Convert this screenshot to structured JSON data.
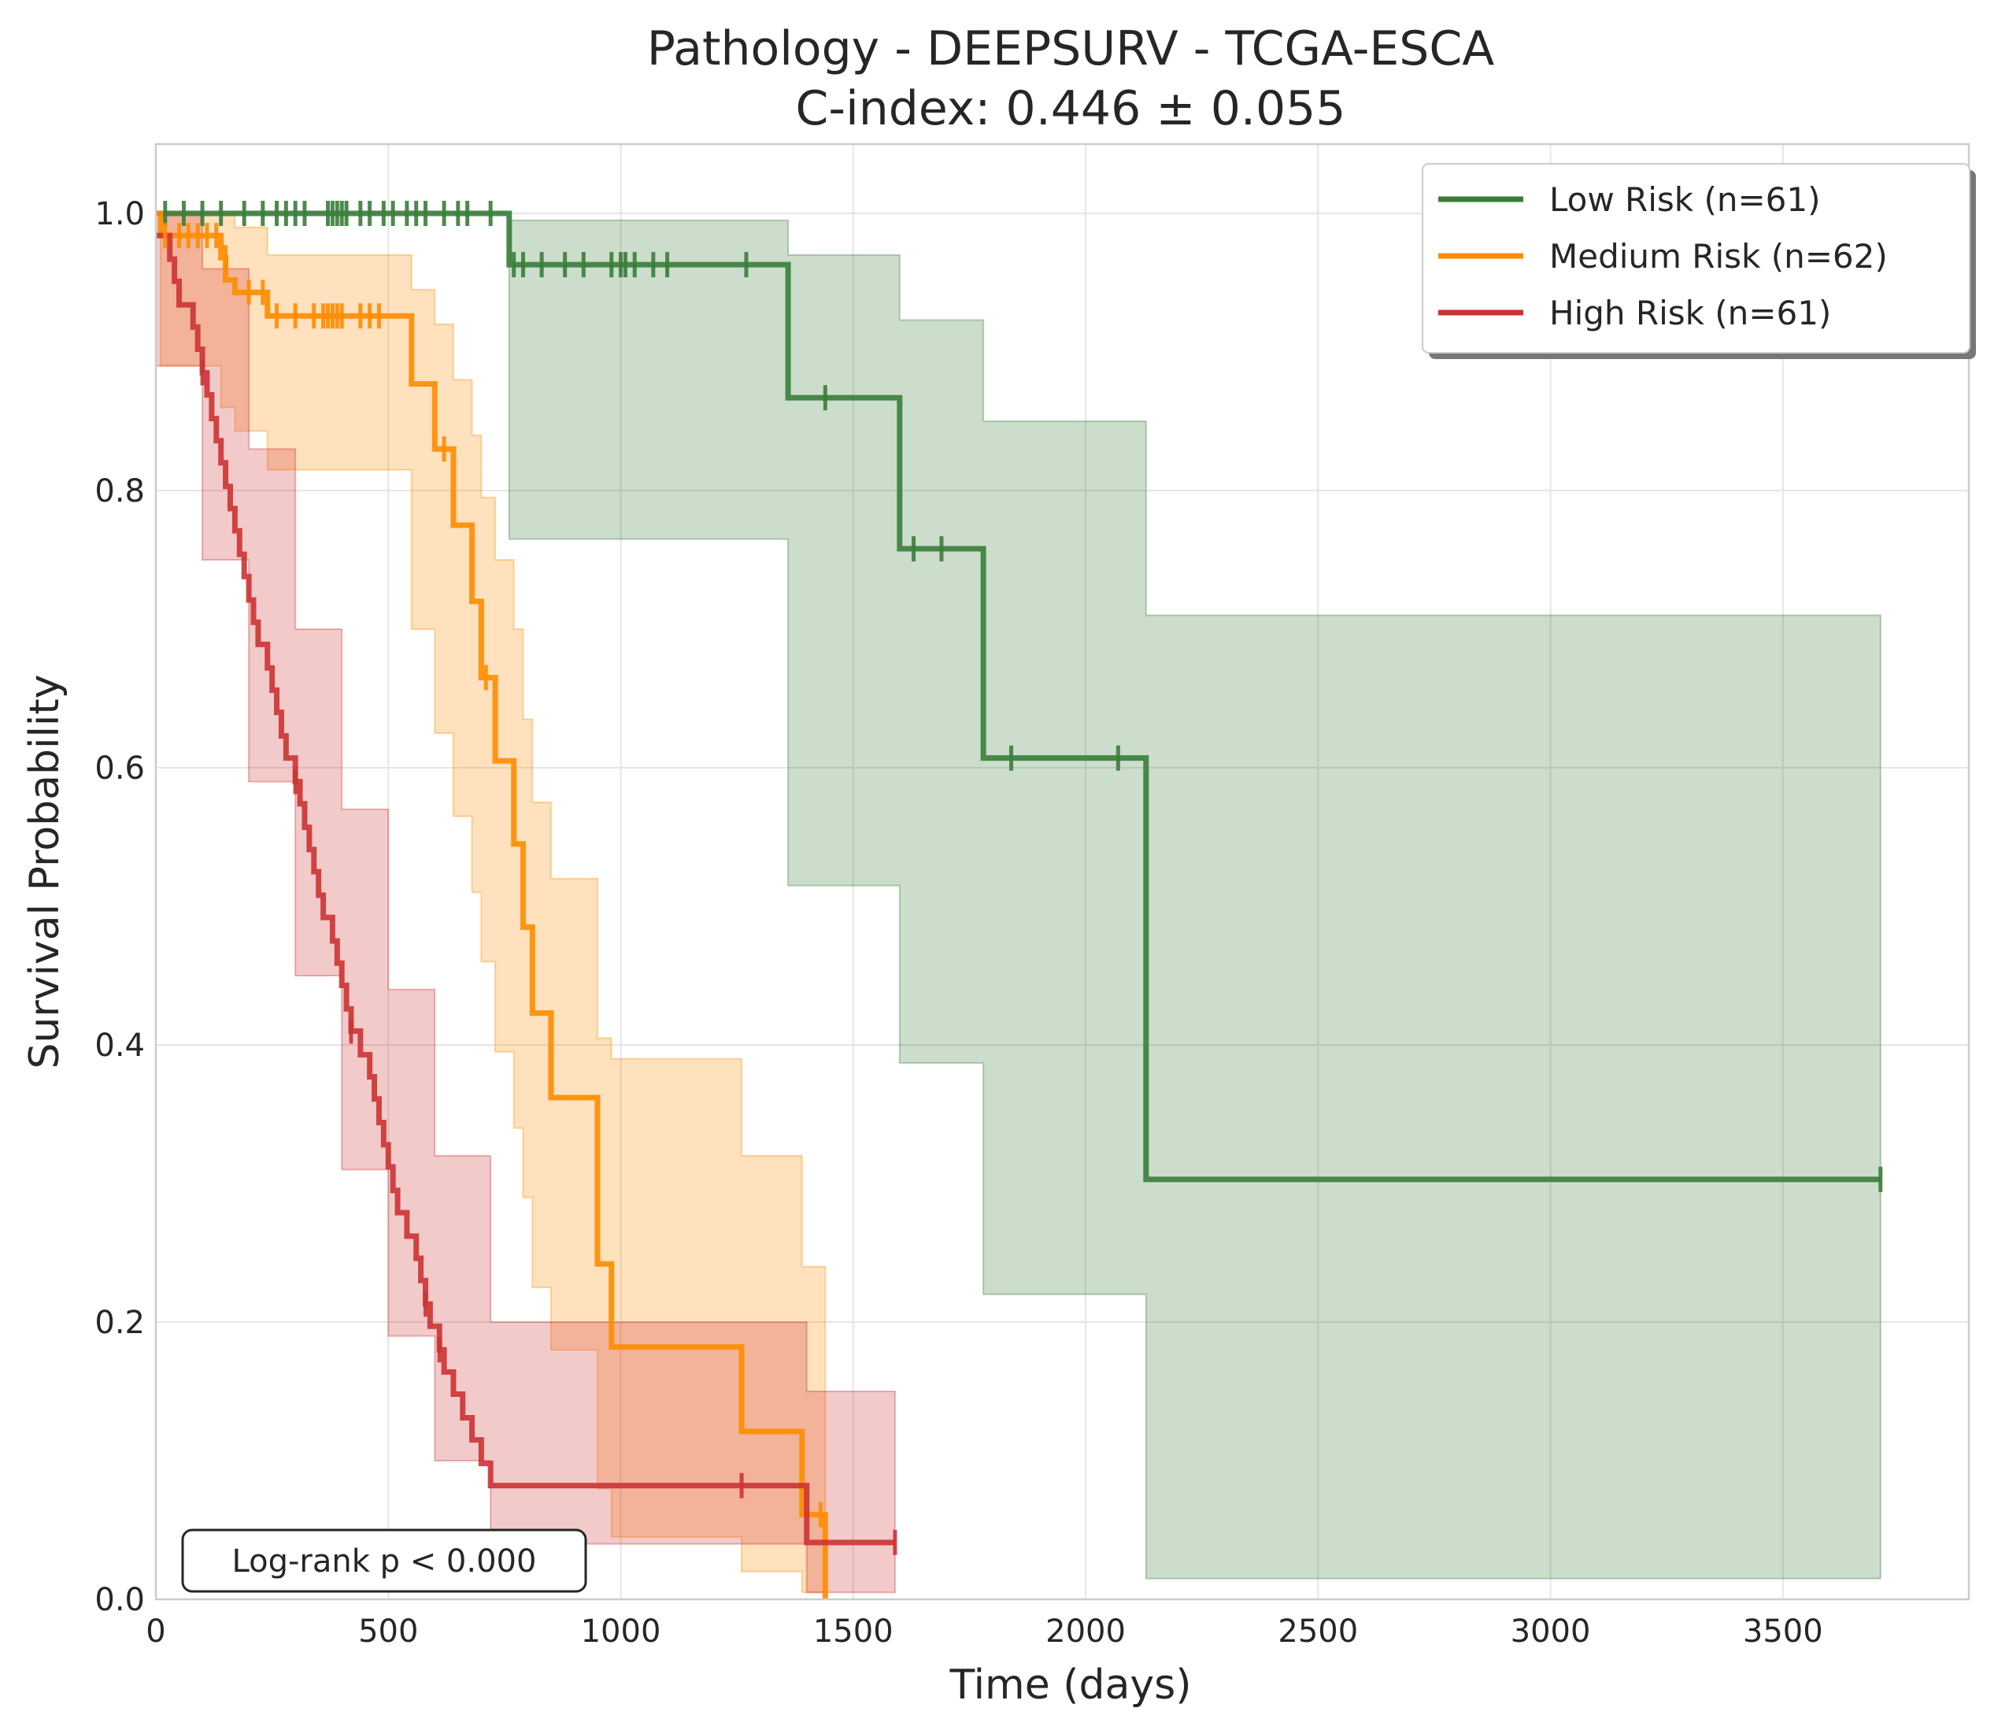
{
  "chart_data": {
    "type": "line",
    "title": "Pathology - DEEPSURV - TCGA-ESCA",
    "subtitle": "C-index: 0.446 ± 0.055",
    "xlabel": "Time (days)",
    "ylabel": "Survival Probability",
    "xlim": [
      0,
      3900
    ],
    "ylim": [
      0,
      1.05
    ],
    "xticks": [
      0,
      500,
      1000,
      1500,
      2000,
      2500,
      3000,
      3500
    ],
    "yticks": [
      0.0,
      0.2,
      0.4,
      0.6,
      0.8,
      1.0
    ],
    "grid": true,
    "legend_position": "top-right",
    "annotation": "Log-rank p < 0.000",
    "series": [
      {
        "name": "Low Risk (n=61)",
        "color": "#3a7d3a",
        "steps": [
          [
            0,
            1.0
          ],
          [
            760,
            0.963
          ],
          [
            1360,
            0.867
          ],
          [
            1600,
            0.758
          ],
          [
            1780,
            0.607
          ],
          [
            2130,
            0.303
          ],
          [
            3710,
            0.303
          ]
        ],
        "ci": [
          [
            0,
            1.0,
            1.0
          ],
          [
            760,
            0.765,
            0.995
          ],
          [
            1360,
            0.515,
            0.97
          ],
          [
            1600,
            0.387,
            0.923
          ],
          [
            1780,
            0.22,
            0.85
          ],
          [
            2130,
            0.015,
            0.71
          ],
          [
            3710,
            0.015,
            0.71
          ]
        ],
        "censors": [
          [
            20,
            1.0
          ],
          [
            60,
            1.0
          ],
          [
            100,
            1.0
          ],
          [
            140,
            1.0
          ],
          [
            190,
            1.0
          ],
          [
            230,
            1.0
          ],
          [
            260,
            1.0
          ],
          [
            280,
            1.0
          ],
          [
            300,
            1.0
          ],
          [
            320,
            1.0
          ],
          [
            370,
            1.0
          ],
          [
            380,
            1.0
          ],
          [
            390,
            1.0
          ],
          [
            400,
            1.0
          ],
          [
            410,
            1.0
          ],
          [
            440,
            1.0
          ],
          [
            460,
            1.0
          ],
          [
            490,
            1.0
          ],
          [
            510,
            1.0
          ],
          [
            540,
            1.0
          ],
          [
            560,
            1.0
          ],
          [
            580,
            1.0
          ],
          [
            620,
            1.0
          ],
          [
            650,
            1.0
          ],
          [
            670,
            1.0
          ],
          [
            720,
            1.0
          ],
          [
            770,
            0.963
          ],
          [
            790,
            0.963
          ],
          [
            830,
            0.963
          ],
          [
            880,
            0.963
          ],
          [
            920,
            0.963
          ],
          [
            980,
            0.963
          ],
          [
            1000,
            0.963
          ],
          [
            1010,
            0.963
          ],
          [
            1030,
            0.963
          ],
          [
            1070,
            0.963
          ],
          [
            1100,
            0.963
          ],
          [
            1270,
            0.963
          ],
          [
            1440,
            0.867
          ],
          [
            1630,
            0.758
          ],
          [
            1690,
            0.758
          ],
          [
            1840,
            0.607
          ],
          [
            2070,
            0.607
          ],
          [
            3710,
            0.303
          ]
        ]
      },
      {
        "name": "Medium Risk (n=62)",
        "color": "#ff8c00",
        "steps": [
          [
            0,
            1.0
          ],
          [
            10,
            0.984
          ],
          [
            140,
            0.968
          ],
          [
            150,
            0.952
          ],
          [
            170,
            0.943
          ],
          [
            240,
            0.926
          ],
          [
            550,
            0.877
          ],
          [
            600,
            0.83
          ],
          [
            640,
            0.775
          ],
          [
            680,
            0.72
          ],
          [
            700,
            0.665
          ],
          [
            730,
            0.605
          ],
          [
            770,
            0.545
          ],
          [
            790,
            0.485
          ],
          [
            810,
            0.423
          ],
          [
            850,
            0.362
          ],
          [
            950,
            0.242
          ],
          [
            980,
            0.182
          ],
          [
            1260,
            0.121
          ],
          [
            1390,
            0.061
          ],
          [
            1440,
            0.0
          ]
        ],
        "ci": [
          [
            0,
            1.0,
            1.0
          ],
          [
            10,
            0.89,
            1.0
          ],
          [
            140,
            0.86,
            1.0
          ],
          [
            170,
            0.843,
            0.99
          ],
          [
            240,
            0.815,
            0.97
          ],
          [
            550,
            0.7,
            0.945
          ],
          [
            600,
            0.625,
            0.92
          ],
          [
            640,
            0.565,
            0.88
          ],
          [
            680,
            0.51,
            0.84
          ],
          [
            700,
            0.46,
            0.795
          ],
          [
            730,
            0.395,
            0.75
          ],
          [
            770,
            0.34,
            0.7
          ],
          [
            790,
            0.29,
            0.635
          ],
          [
            810,
            0.225,
            0.575
          ],
          [
            850,
            0.18,
            0.52
          ],
          [
            950,
            0.08,
            0.405
          ],
          [
            980,
            0.045,
            0.39
          ],
          [
            1260,
            0.02,
            0.32
          ],
          [
            1390,
            0.005,
            0.24
          ],
          [
            1440,
            0.0,
            0.24
          ]
        ],
        "censors": [
          [
            20,
            0.984
          ],
          [
            50,
            0.984
          ],
          [
            70,
            0.984
          ],
          [
            90,
            0.984
          ],
          [
            110,
            0.984
          ],
          [
            130,
            0.984
          ],
          [
            150,
            0.968
          ],
          [
            200,
            0.943
          ],
          [
            230,
            0.943
          ],
          [
            260,
            0.926
          ],
          [
            300,
            0.926
          ],
          [
            340,
            0.926
          ],
          [
            360,
            0.926
          ],
          [
            370,
            0.926
          ],
          [
            380,
            0.926
          ],
          [
            390,
            0.926
          ],
          [
            400,
            0.926
          ],
          [
            440,
            0.926
          ],
          [
            460,
            0.926
          ],
          [
            480,
            0.926
          ],
          [
            620,
            0.83
          ],
          [
            710,
            0.665
          ],
          [
            1430,
            0.061
          ]
        ]
      },
      {
        "name": "High Risk (n=61)",
        "color": "#cc3333",
        "steps": [
          [
            0,
            0.984
          ],
          [
            30,
            0.967
          ],
          [
            40,
            0.951
          ],
          [
            50,
            0.934
          ],
          [
            80,
            0.918
          ],
          [
            90,
            0.902
          ],
          [
            100,
            0.885
          ],
          [
            110,
            0.869
          ],
          [
            120,
            0.852
          ],
          [
            130,
            0.836
          ],
          [
            140,
            0.82
          ],
          [
            150,
            0.803
          ],
          [
            160,
            0.787
          ],
          [
            170,
            0.771
          ],
          [
            180,
            0.754
          ],
          [
            190,
            0.738
          ],
          [
            200,
            0.721
          ],
          [
            210,
            0.705
          ],
          [
            220,
            0.689
          ],
          [
            240,
            0.672
          ],
          [
            250,
            0.656
          ],
          [
            260,
            0.64
          ],
          [
            270,
            0.623
          ],
          [
            280,
            0.607
          ],
          [
            300,
            0.59
          ],
          [
            310,
            0.574
          ],
          [
            320,
            0.557
          ],
          [
            330,
            0.541
          ],
          [
            340,
            0.525
          ],
          [
            350,
            0.508
          ],
          [
            360,
            0.492
          ],
          [
            380,
            0.475
          ],
          [
            390,
            0.459
          ],
          [
            400,
            0.443
          ],
          [
            410,
            0.426
          ],
          [
            420,
            0.41
          ],
          [
            440,
            0.393
          ],
          [
            460,
            0.377
          ],
          [
            470,
            0.361
          ],
          [
            480,
            0.344
          ],
          [
            490,
            0.328
          ],
          [
            500,
            0.312
          ],
          [
            510,
            0.295
          ],
          [
            520,
            0.279
          ],
          [
            540,
            0.262
          ],
          [
            560,
            0.246
          ],
          [
            570,
            0.23
          ],
          [
            580,
            0.213
          ],
          [
            590,
            0.197
          ],
          [
            610,
            0.18
          ],
          [
            620,
            0.164
          ],
          [
            640,
            0.148
          ],
          [
            660,
            0.131
          ],
          [
            680,
            0.115
          ],
          [
            700,
            0.098
          ],
          [
            720,
            0.082
          ],
          [
            1400,
            0.041
          ],
          [
            1590,
            0.041
          ]
        ],
        "ci": [
          [
            0,
            0.89,
            1.0
          ],
          [
            100,
            0.75,
            0.96
          ],
          [
            200,
            0.59,
            0.83
          ],
          [
            300,
            0.45,
            0.7
          ],
          [
            400,
            0.31,
            0.57
          ],
          [
            500,
            0.19,
            0.44
          ],
          [
            600,
            0.1,
            0.32
          ],
          [
            720,
            0.04,
            0.2
          ],
          [
            1400,
            0.005,
            0.15
          ],
          [
            1590,
            0.005,
            0.15
          ]
        ],
        "censors": [
          [
            100,
            0.885
          ],
          [
            300,
            0.59
          ],
          [
            420,
            0.41
          ],
          [
            580,
            0.213
          ],
          [
            610,
            0.18
          ],
          [
            1260,
            0.082
          ],
          [
            1590,
            0.041
          ]
        ]
      }
    ]
  }
}
